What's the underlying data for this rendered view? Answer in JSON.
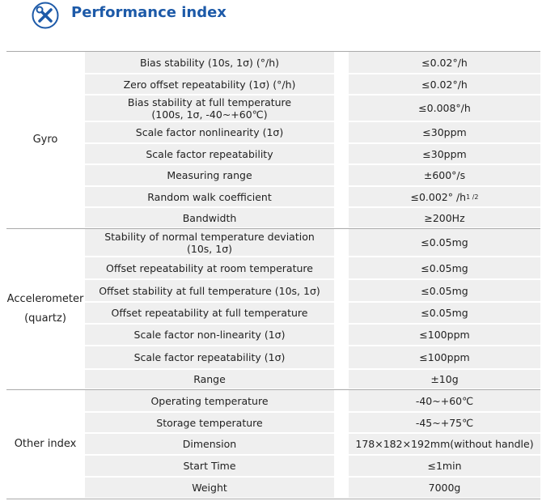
{
  "header": {
    "title": "Performance index"
  },
  "table": {
    "groups": [
      {
        "name": "Gyro",
        "rows": [
          {
            "parameter": "Bias stability (10s, 1σ) (°/h)",
            "value": "≤0.02°/h"
          },
          {
            "parameter": "Zero offset repeatability (1σ) (°/h)",
            "value": "≤0.02°/h"
          },
          {
            "parameter": "Bias stability at full temperature\n(100s, 1σ, -40~+60℃)",
            "value": "≤0.008°/h"
          },
          {
            "parameter": "Scale factor nonlinearity (1σ)",
            "value": "≤30ppm"
          },
          {
            "parameter": "Scale factor repeatability",
            "value": "≤30ppm"
          },
          {
            "parameter": "Measuring range",
            "value": "±600°/s"
          },
          {
            "parameter": "Random walk coefficient",
            "value": "≤0.002° /h",
            "value_sup": "1 /2"
          },
          {
            "parameter": "Bandwidth",
            "value": "≥200Hz"
          }
        ]
      },
      {
        "name": "Accelerometer (quartz)",
        "rows": [
          {
            "parameter": "Stability of normal temperature deviation\n(10s, 1σ)",
            "value": "≤0.05mg"
          },
          {
            "parameter": "Offset repeatability at room temperature",
            "value": "≤0.05mg"
          },
          {
            "parameter": "Offset stability at full temperature (10s, 1σ)",
            "value": "≤0.05mg"
          },
          {
            "parameter": "Offset repeatability at full temperature",
            "value": "≤0.05mg"
          },
          {
            "parameter": "Scale factor non-linearity (1σ)",
            "value": "≤100ppm"
          },
          {
            "parameter": "Scale factor repeatability (1σ)",
            "value": "≤100ppm"
          },
          {
            "parameter": "Range",
            "value": "±10g"
          }
        ]
      },
      {
        "name": "Other index",
        "rows": [
          {
            "parameter": "Operating temperature",
            "value": "-40~+60℃"
          },
          {
            "parameter": "Storage temperature",
            "value": "-45~+75℃"
          },
          {
            "parameter": "Dimension",
            "value": "178×182×192mm(without handle)"
          },
          {
            "parameter": "Start Time",
            "value": "≤1min"
          },
          {
            "parameter": "Weight",
            "value": "7000g"
          }
        ]
      }
    ]
  }
}
